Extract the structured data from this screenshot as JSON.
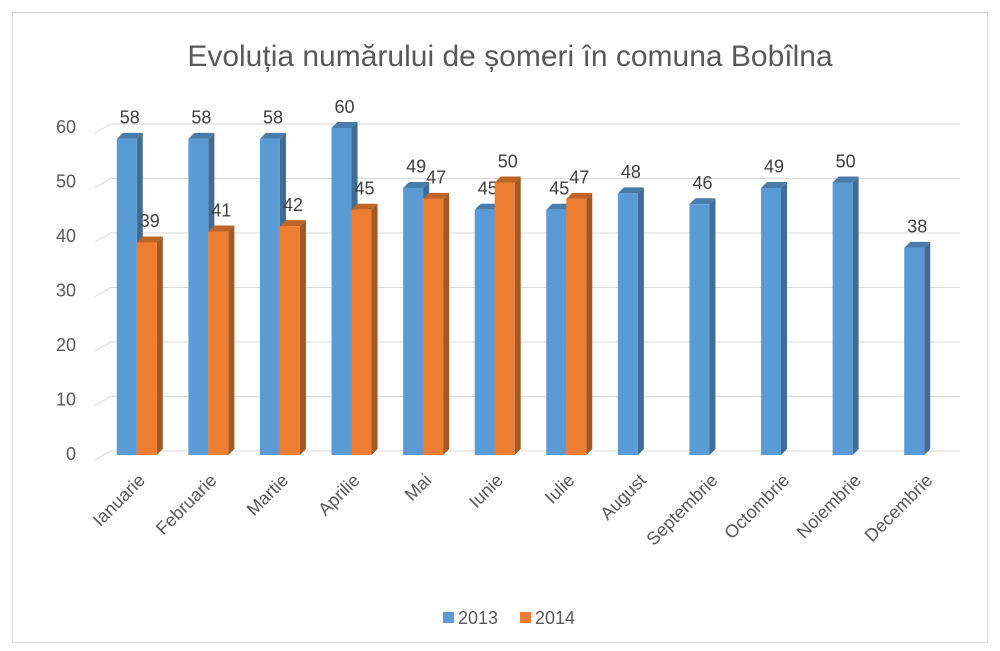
{
  "chart_data": {
    "type": "bar",
    "title": "Evoluția numărului de șomeri în comuna Bobîlna",
    "categories": [
      "Ianuarie",
      "Februarie",
      "Martie",
      "Aprilie",
      "Mai",
      "Iunie",
      "Iulie",
      "August",
      "Septembrie",
      "Octombrie",
      "Noiembrie",
      "Decembrie"
    ],
    "series": [
      {
        "name": "2013",
        "color": "#5b9bd5",
        "values": [
          58,
          58,
          58,
          60,
          49,
          45,
          45,
          48,
          46,
          49,
          50,
          38
        ]
      },
      {
        "name": "2014",
        "color": "#ed7d31",
        "values": [
          39,
          41,
          42,
          45,
          47,
          50,
          47,
          null,
          null,
          null,
          null,
          null
        ]
      }
    ],
    "ylim": [
      0,
      60
    ],
    "yticks": [
      0,
      10,
      20,
      30,
      40,
      50,
      60
    ],
    "grid": true,
    "legend": "bottom"
  }
}
